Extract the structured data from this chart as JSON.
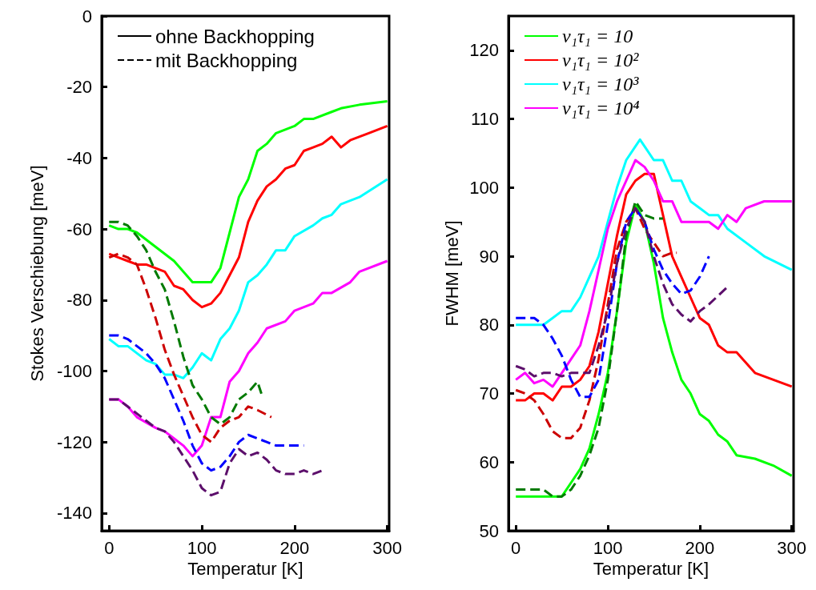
{
  "chart_data": [
    {
      "type": "line",
      "xlabel": "Temperatur [K]",
      "ylabel": "Stokes Verschiebung [meV]",
      "xlim": [
        -8,
        302
      ],
      "xticks": [
        0,
        100,
        200,
        300
      ],
      "ylim": [
        -145,
        0
      ],
      "yticks": [
        -140,
        -120,
        -100,
        -80,
        -60,
        -40,
        -20,
        0
      ],
      "grid": false,
      "legend": "top left",
      "marker": "none",
      "series": [
        {
          "name": "ohne Backhopping",
          "color": "#000000",
          "line_style": "solid"
        },
        {
          "name": "mit Backhopping",
          "color": "#000000",
          "line_style": "dashed"
        },
        {
          "color": "#00ff00",
          "line_style": "solid",
          "x": [
            0,
            10,
            20,
            30,
            50,
            70,
            80,
            90,
            100,
            110,
            120,
            130,
            140,
            150,
            160,
            170,
            180,
            200,
            210,
            220,
            240,
            250,
            270,
            300
          ],
          "values": [
            -59,
            -60,
            -60,
            -61,
            -65,
            -69,
            -72,
            -75,
            -75,
            -75,
            -71,
            -61,
            -51,
            -46,
            -38,
            -36,
            -33,
            -31,
            -29,
            -29,
            -27,
            -26,
            -25,
            -24
          ]
        },
        {
          "color": "#ff0000",
          "line_style": "solid",
          "x": [
            0,
            10,
            20,
            30,
            40,
            50,
            60,
            70,
            80,
            90,
            100,
            110,
            120,
            130,
            140,
            150,
            160,
            170,
            180,
            190,
            200,
            210,
            220,
            230,
            240,
            250,
            260,
            280,
            300
          ],
          "values": [
            -67,
            -68,
            -69,
            -70,
            -70,
            -71,
            -72,
            -76,
            -77,
            -80,
            -82,
            -81,
            -78,
            -73,
            -68,
            -58,
            -52,
            -48,
            -46,
            -43,
            -42,
            -38,
            -37,
            -36,
            -34,
            -37,
            -35,
            -33,
            -31
          ]
        },
        {
          "color": "#00ffff",
          "line_style": "solid",
          "x": [
            0,
            10,
            20,
            40,
            50,
            60,
            70,
            80,
            90,
            100,
            110,
            120,
            130,
            140,
            150,
            160,
            170,
            180,
            190,
            200,
            220,
            230,
            240,
            250,
            270,
            300
          ],
          "values": [
            -91,
            -93,
            -93,
            -97,
            -98,
            -101,
            -101,
            -102,
            -99,
            -95,
            -97,
            -91,
            -88,
            -83,
            -75,
            -73,
            -70,
            -66,
            -66,
            -62,
            -59,
            -57,
            -56,
            -53,
            -51,
            -46
          ]
        },
        {
          "color": "#ff00ff",
          "line_style": "solid",
          "x": [
            0,
            10,
            20,
            30,
            50,
            60,
            70,
            80,
            90,
            100,
            110,
            120,
            130,
            140,
            150,
            160,
            170,
            190,
            200,
            220,
            230,
            240,
            260,
            270,
            300
          ],
          "values": [
            -108,
            -108,
            -110,
            -113,
            -116,
            -117,
            -119,
            -121,
            -124,
            -121,
            -113,
            -113,
            -103,
            -100,
            -95,
            -92,
            -88,
            -86,
            -83,
            -81,
            -78,
            -78,
            -75,
            -72,
            -69
          ]
        },
        {
          "color": "#007a00",
          "line_style": "dashed",
          "x": [
            0,
            10,
            20,
            30,
            40,
            50,
            60,
            70,
            80,
            90,
            100,
            110,
            120,
            130,
            140,
            150,
            160,
            165
          ],
          "values": [
            -58,
            -58,
            -59,
            -62,
            -66,
            -72,
            -77,
            -86,
            -96,
            -104,
            -108,
            -113,
            -115,
            -113,
            -108,
            -106,
            -103,
            -107
          ]
        },
        {
          "color": "#cc0000",
          "line_style": "dashed",
          "x": [
            0,
            10,
            20,
            30,
            40,
            50,
            60,
            70,
            80,
            90,
            100,
            110,
            120,
            130,
            140,
            150,
            160,
            175
          ],
          "values": [
            -68,
            -67,
            -68,
            -70,
            -77,
            -85,
            -94,
            -101,
            -107,
            -113,
            -118,
            -120,
            -116,
            -114,
            -113,
            -110,
            -111,
            -113
          ]
        },
        {
          "color": "#0000ff",
          "line_style": "dashed",
          "x": [
            0,
            10,
            20,
            30,
            40,
            50,
            60,
            70,
            80,
            90,
            100,
            110,
            120,
            130,
            140,
            150,
            160,
            170,
            180,
            190,
            210
          ],
          "values": [
            -90,
            -90,
            -91,
            -93,
            -95,
            -98,
            -102,
            -108,
            -114,
            -121,
            -126,
            -128,
            -127,
            -124,
            -120,
            -118,
            -119,
            -120,
            -121,
            -121,
            -121
          ]
        },
        {
          "color": "#5c0f6b",
          "line_style": "dashed",
          "x": [
            0,
            10,
            20,
            30,
            50,
            60,
            70,
            80,
            90,
            100,
            110,
            120,
            130,
            140,
            150,
            160,
            170,
            180,
            190,
            200,
            210,
            220,
            230
          ],
          "values": [
            -108,
            -108,
            -110,
            -112,
            -116,
            -117,
            -120,
            -124,
            -128,
            -133,
            -135,
            -134,
            -126,
            -122,
            -124,
            -123,
            -125,
            -128,
            -129,
            -129,
            -128,
            -129,
            -128
          ]
        }
      ]
    },
    {
      "type": "line",
      "xlabel": "Temperatur [K]",
      "ylabel": "FWHM [meV]",
      "xlim": [
        -8,
        302
      ],
      "xticks": [
        0,
        100,
        200,
        300
      ],
      "ylim": [
        50,
        125
      ],
      "yticks": [
        50,
        60,
        70,
        80,
        90,
        100,
        110,
        120
      ],
      "grid": false,
      "legend": "top left",
      "marker": "none",
      "series": [
        {
          "name": "ν₁τ₁ = 10",
          "color": "#00ff00",
          "line_style": "solid",
          "x": [
            0,
            10,
            30,
            50,
            60,
            70,
            80,
            90,
            100,
            110,
            120,
            130,
            140,
            150,
            160,
            170,
            180,
            190,
            200,
            210,
            220,
            230,
            240,
            260,
            280,
            300
          ],
          "values": [
            55,
            55,
            55,
            55,
            57,
            59,
            62,
            67,
            73,
            82,
            92,
            97.5,
            95,
            89,
            81,
            76,
            72,
            70,
            67,
            66,
            64,
            63,
            61,
            60.5,
            59.5,
            58
          ]
        },
        {
          "name": "ν₁τ₁ = 10²",
          "color": "#ff0000",
          "line_style": "solid",
          "x": [
            0,
            10,
            20,
            30,
            40,
            50,
            60,
            70,
            80,
            90,
            100,
            110,
            120,
            130,
            140,
            150,
            160,
            170,
            180,
            190,
            200,
            210,
            220,
            230,
            240,
            260,
            300
          ],
          "values": [
            69,
            69,
            70,
            70,
            69,
            71,
            71,
            72,
            74,
            79,
            86,
            93,
            99,
            101,
            102,
            102,
            96,
            90,
            87,
            84,
            81,
            80,
            77,
            76,
            76,
            73,
            71
          ]
        },
        {
          "name": "ν₁τ₁ = 10³",
          "color": "#00ffff",
          "line_style": "solid",
          "x": [
            0,
            10,
            20,
            30,
            40,
            50,
            60,
            70,
            80,
            90,
            100,
            110,
            120,
            130,
            135,
            140,
            150,
            160,
            170,
            180,
            190,
            200,
            210,
            220,
            230,
            250,
            270,
            300
          ],
          "values": [
            80,
            80,
            80,
            80,
            81,
            82,
            82,
            84,
            87,
            90,
            95,
            100,
            104,
            106,
            107,
            106,
            104,
            104,
            101,
            101,
            98,
            97,
            96,
            96,
            94,
            92,
            90,
            88
          ]
        },
        {
          "name": "ν₁τ₁ = 10⁴",
          "color": "#ff00ff",
          "line_style": "solid",
          "x": [
            0,
            10,
            20,
            30,
            40,
            50,
            60,
            70,
            80,
            90,
            100,
            110,
            120,
            130,
            140,
            150,
            160,
            170,
            180,
            190,
            200,
            210,
            220,
            230,
            240,
            250,
            270,
            300
          ],
          "values": [
            72,
            73,
            71.5,
            72,
            71,
            73,
            75,
            77,
            82,
            88,
            94,
            98,
            101,
            104,
            103,
            101,
            98,
            98,
            95,
            95,
            95,
            95,
            94,
            96,
            95,
            97,
            98,
            98
          ]
        },
        {
          "color": "#007a00",
          "line_style": "dashed",
          "x": [
            0,
            10,
            20,
            30,
            40,
            50,
            60,
            70,
            80,
            90,
            100,
            110,
            120,
            130,
            140,
            150,
            160
          ],
          "values": [
            56,
            56,
            56,
            56,
            55,
            55,
            56,
            58,
            61,
            65,
            72,
            82,
            93,
            98,
            96,
            95.5,
            95.5
          ]
        },
        {
          "color": "#cc0000",
          "line_style": "dashed",
          "x": [
            0,
            10,
            20,
            30,
            40,
            50,
            60,
            70,
            80,
            90,
            100,
            110,
            120,
            130,
            140,
            150,
            160,
            170,
            175
          ],
          "values": [
            70.5,
            70,
            69,
            67,
            64.5,
            63.5,
            63.5,
            65,
            69,
            75,
            83,
            91,
            95,
            97,
            94,
            92,
            90,
            90.5,
            90.5
          ]
        },
        {
          "color": "#0000ff",
          "line_style": "dashed",
          "x": [
            0,
            10,
            20,
            30,
            40,
            50,
            60,
            70,
            80,
            90,
            100,
            110,
            120,
            130,
            140,
            150,
            160,
            170,
            180,
            190,
            200,
            210
          ],
          "values": [
            81,
            81,
            81,
            80,
            78,
            75.5,
            72,
            69.5,
            69.5,
            72,
            80,
            89,
            95,
            97,
            95,
            91,
            88,
            86,
            84.5,
            85,
            87,
            90
          ]
        },
        {
          "color": "#5c0f6b",
          "line_style": "dashed",
          "x": [
            0,
            10,
            20,
            30,
            40,
            50,
            60,
            70,
            80,
            90,
            100,
            110,
            120,
            130,
            140,
            150,
            160,
            170,
            180,
            190,
            200,
            210,
            230
          ],
          "values": [
            74,
            73.5,
            72.5,
            73,
            73,
            72.5,
            73,
            73,
            73,
            77,
            82,
            89,
            94,
            97,
            95,
            90,
            86,
            83,
            81.5,
            80.5,
            82,
            83,
            85.5
          ]
        }
      ]
    }
  ]
}
